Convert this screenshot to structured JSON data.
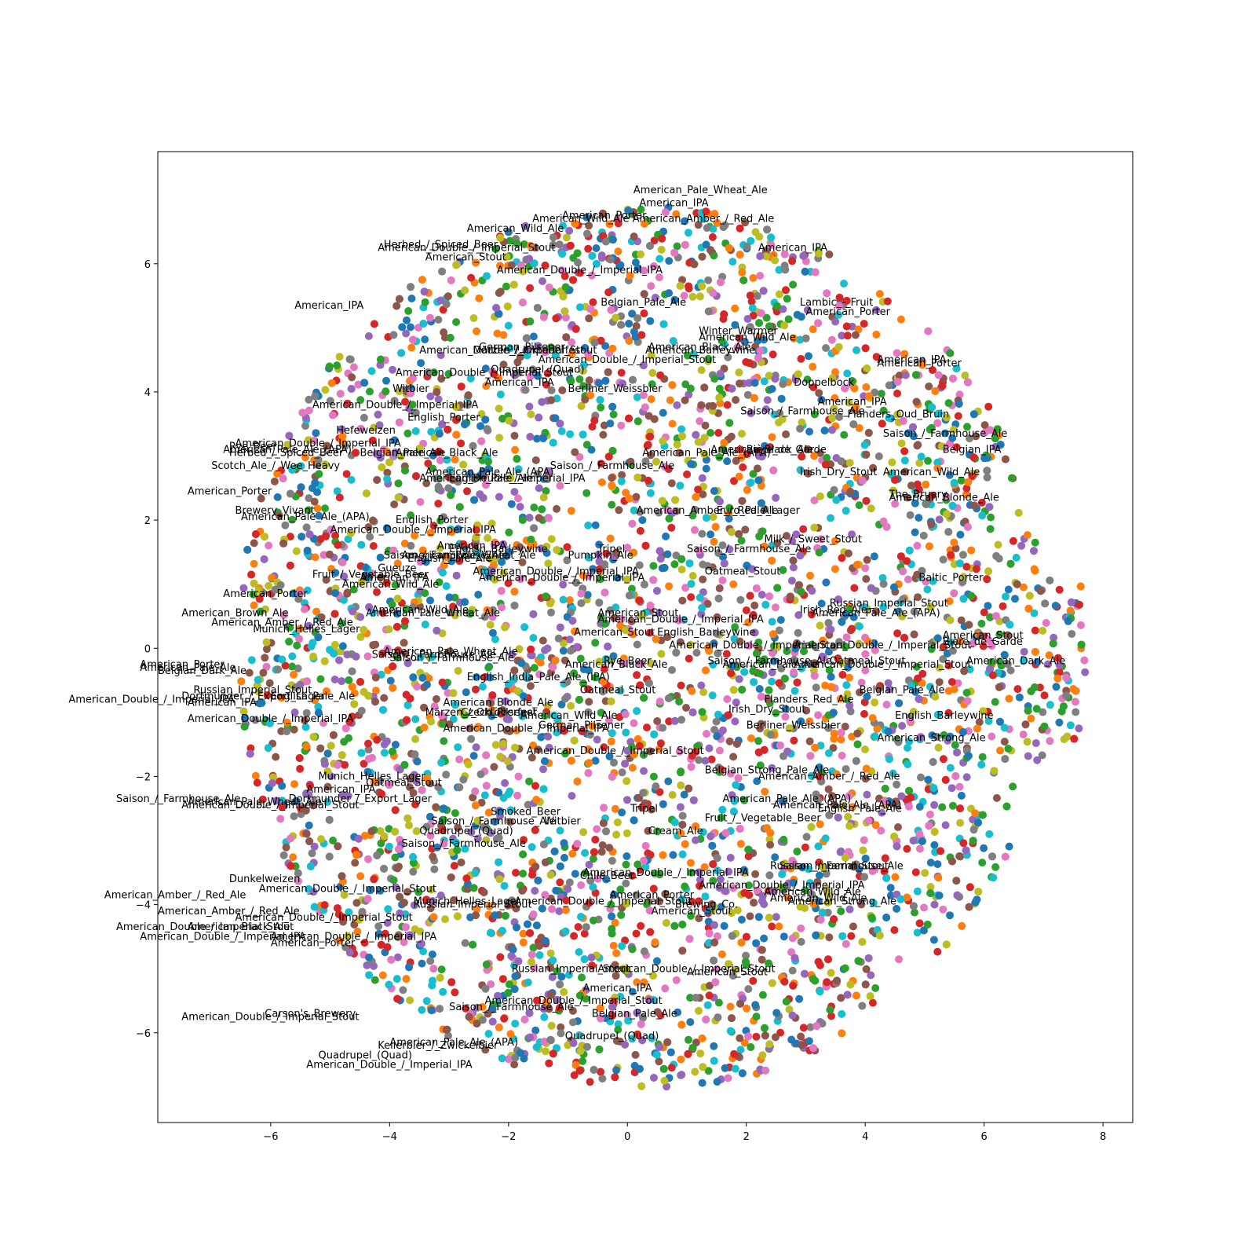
{
  "chart_data": {
    "type": "scatter",
    "title": "",
    "xlabel": "",
    "ylabel": "",
    "xlim": [
      -7.9,
      8.5
    ],
    "ylim": [
      -7.4,
      7.75
    ],
    "xticks": [
      -6,
      -4,
      -2,
      0,
      2,
      4,
      6,
      8
    ],
    "yticks": [
      -6,
      -4,
      -2,
      0,
      2,
      4,
      6
    ],
    "grid": false,
    "legend": "none",
    "marker_colors": [
      "#1f77b4",
      "#ff7f0e",
      "#2ca02c",
      "#d62728",
      "#9467bd",
      "#8c564b",
      "#e377c2",
      "#7f7f7f",
      "#bcbd22",
      "#17becf"
    ],
    "labels": [
      {
        "text": "American_Pale_Wheat_Ale",
        "x": 0.1,
        "y": 7.1
      },
      {
        "text": "American_IPA",
        "x": 0.2,
        "y": 6.9
      },
      {
        "text": "American_Porter",
        "x": -1.1,
        "y": 6.7
      },
      {
        "text": "American_Wild_Ale American_Amber_/_Red_Ale",
        "x": -1.6,
        "y": 6.65
      },
      {
        "text": "American_Wild_Ale",
        "x": -2.7,
        "y": 6.5
      },
      {
        "text": "Herbed_/_Spiced_Beer",
        "x": -4.1,
        "y": 6.25
      },
      {
        "text": "American_Double_/_Imperial_Stout",
        "x": -4.2,
        "y": 6.2
      },
      {
        "text": "American_Stout",
        "x": -3.4,
        "y": 6.05
      },
      {
        "text": "American_Double_/_Imperial_IPA",
        "x": -2.2,
        "y": 5.85
      },
      {
        "text": "American_IPA",
        "x": 2.2,
        "y": 6.2
      },
      {
        "text": "American_IPA",
        "x": -5.6,
        "y": 5.3
      },
      {
        "text": "Belgian_Pale_Ale",
        "x": -0.45,
        "y": 5.35
      },
      {
        "text": "Lambic_-_Fruit",
        "x": 2.9,
        "y": 5.35
      },
      {
        "text": "American_Porter",
        "x": 3.0,
        "y": 5.2
      },
      {
        "text": "Winter_Warmer",
        "x": 1.2,
        "y": 4.9
      },
      {
        "text": "American_Wild_Ale",
        "x": 1.2,
        "y": 4.8
      },
      {
        "text": "American_Black_Ale",
        "x": 0.35,
        "y": 4.65
      },
      {
        "text": "American_Barleywine",
        "x": 0.3,
        "y": 4.6
      },
      {
        "text": "American_Double_/_Imperial_Stout",
        "x": -3.5,
        "y": 4.6
      },
      {
        "text": "German_Pilsener",
        "x": -2.5,
        "y": 4.65
      },
      {
        "text": "Märzen_/_Oktoberfest",
        "x": -2.6,
        "y": 4.6
      },
      {
        "text": "American_Double_/_Imperial_Stout",
        "x": -1.5,
        "y": 4.45
      },
      {
        "text": "Quadrupel_(Quad)",
        "x": -2.3,
        "y": 4.3
      },
      {
        "text": "American_Double_/_Imperial_Stout",
        "x": -3.9,
        "y": 4.25
      },
      {
        "text": "American_IPA",
        "x": -2.4,
        "y": 4.1
      },
      {
        "text": "Witbier",
        "x": -3.95,
        "y": 4.0
      },
      {
        "text": "Berliner_Weissbier",
        "x": -1.0,
        "y": 4.0
      },
      {
        "text": "American_IPA",
        "x": 4.2,
        "y": 4.45
      },
      {
        "text": "American_Porter",
        "x": 4.2,
        "y": 4.4
      },
      {
        "text": "Doppelbock",
        "x": 2.8,
        "y": 4.1
      },
      {
        "text": "American_Double_/_Imperial_IPA",
        "x": -5.3,
        "y": 3.75
      },
      {
        "text": "English_Porter",
        "x": -3.7,
        "y": 3.55
      },
      {
        "text": "Saison_/_Farmhouse_Ale",
        "x": 1.9,
        "y": 3.65
      },
      {
        "text": "American_IPA",
        "x": 3.2,
        "y": 3.8
      },
      {
        "text": "Flanders_Oud_Bruin",
        "x": 3.7,
        "y": 3.6
      },
      {
        "text": "Hefeweizen",
        "x": -4.9,
        "y": 3.35
      },
      {
        "text": "Saison_/_Farmhouse_Ale",
        "x": 4.3,
        "y": 3.3
      },
      {
        "text": "American_Double_/_Imperial_IPA",
        "x": -6.6,
        "y": 3.15
      },
      {
        "text": "Rye_Beer",
        "x": -6.7,
        "y": 3.1
      },
      {
        "text": "American_Pale_Ale_(APA)",
        "x": -6.8,
        "y": 3.05
      },
      {
        "text": "Herbed_/_Spiced_Beer",
        "x": -6.7,
        "y": 3.0
      },
      {
        "text": "Belgian_Pale_Ale",
        "x": -4.5,
        "y": 3.0
      },
      {
        "text": "American_Black_Ale",
        "x": -3.9,
        "y": 3.0
      },
      {
        "text": "American_Pale_Ale_(APA)",
        "x": 0.25,
        "y": 3.0
      },
      {
        "text": "Bière_de_Garde",
        "x": 2.0,
        "y": 3.05
      },
      {
        "text": "American_Black_Ale",
        "x": 1.4,
        "y": 3.05
      },
      {
        "text": "Belgian_IPA",
        "x": 5.3,
        "y": 3.05
      },
      {
        "text": "Scotch_Ale_/_Wee_Heavy",
        "x": -7.0,
        "y": 2.8
      },
      {
        "text": "Saison_/_Farmhouse_Ale",
        "x": -1.3,
        "y": 2.8
      },
      {
        "text": "American_Pale_Ale_(APA)",
        "x": -3.4,
        "y": 2.7
      },
      {
        "text": "American_Double_/_Imperial_IPA",
        "x": -3.5,
        "y": 2.6
      },
      {
        "text": "English_Pale_Ale",
        "x": -3.0,
        "y": 2.6
      },
      {
        "text": "Irish_Dry_Stout",
        "x": 2.9,
        "y": 2.7
      },
      {
        "text": "American_Wild_Ale",
        "x": 4.3,
        "y": 2.7
      },
      {
        "text": "American_Porter",
        "x": -7.4,
        "y": 2.4
      },
      {
        "text": "The_Bruery",
        "x": 4.4,
        "y": 2.35
      },
      {
        "text": "American_Blonde_Ale",
        "x": 4.4,
        "y": 2.3
      },
      {
        "text": "Brewery_Vivant",
        "x": -6.6,
        "y": 2.1
      },
      {
        "text": "American_Pale_Ale_(APA)",
        "x": -6.5,
        "y": 2.0
      },
      {
        "text": "English_Porter",
        "x": -3.9,
        "y": 1.95
      },
      {
        "text": "American_Double_/_Imperial_IPA",
        "x": -5.0,
        "y": 1.8
      },
      {
        "text": "American_Amber_/_Red_Ale",
        "x": 0.15,
        "y": 2.1
      },
      {
        "text": "Euro_Pale_Lager",
        "x": 1.5,
        "y": 2.1
      },
      {
        "text": "American_IPA",
        "x": -3.2,
        "y": 1.55
      },
      {
        "text": "English_Barleywine",
        "x": -3.0,
        "y": 1.5
      },
      {
        "text": "Saison_/_Farmhouse_Ale",
        "x": -4.1,
        "y": 1.4
      },
      {
        "text": "American_Pale_Wheat_Ale",
        "x": -3.8,
        "y": 1.4
      },
      {
        "text": "English_Pale_Ale",
        "x": -3.7,
        "y": 1.35
      },
      {
        "text": "Tripel",
        "x": -0.5,
        "y": 1.5
      },
      {
        "text": "Pumpkin_Ale",
        "x": -1.0,
        "y": 1.4
      },
      {
        "text": "Saison_/_Farmhouse_Ale",
        "x": 1.0,
        "y": 1.5
      },
      {
        "text": "Milk_/_Sweet_Stout",
        "x": 2.3,
        "y": 1.65
      },
      {
        "text": "Gueuze",
        "x": -4.2,
        "y": 1.2
      },
      {
        "text": "Fruit_/_Vegetable_Beer",
        "x": -5.3,
        "y": 1.1
      },
      {
        "text": "American_IPA",
        "x": -4.5,
        "y": 1.05
      },
      {
        "text": "American_Wild_Ale",
        "x": -4.8,
        "y": 0.95
      },
      {
        "text": "American_Double_/_Imperial_IPA",
        "x": -2.6,
        "y": 1.15
      },
      {
        "text": "American_Double_/_Imperial_IPA",
        "x": -2.5,
        "y": 1.05
      },
      {
        "text": "Oatmeal_Stout",
        "x": 1.3,
        "y": 1.15
      },
      {
        "text": "Baltic_Porter",
        "x": 4.9,
        "y": 1.05
      },
      {
        "text": "American_Porter",
        "x": -6.8,
        "y": 0.8
      },
      {
        "text": "Russian_Imperial_Stout",
        "x": 3.4,
        "y": 0.65
      },
      {
        "text": "American_Wild_Ale",
        "x": -4.3,
        "y": 0.55
      },
      {
        "text": "American_Pale_Wheat_Ale",
        "x": -4.4,
        "y": 0.5
      },
      {
        "text": "Irish_Red_Ale",
        "x": 2.9,
        "y": 0.55
      },
      {
        "text": "American_Pale_Ale_(APA)",
        "x": 3.1,
        "y": 0.5
      },
      {
        "text": "American_Stout",
        "x": -0.5,
        "y": 0.5
      },
      {
        "text": "American_Double_/_Imperial_IPA",
        "x": -0.5,
        "y": 0.4
      },
      {
        "text": "American_Brown_Ale",
        "x": -7.5,
        "y": 0.5
      },
      {
        "text": "American_Amber_/_Red_Ale",
        "x": -7.0,
        "y": 0.35
      },
      {
        "text": "Munich_Helles_Lager",
        "x": -6.3,
        "y": 0.25
      },
      {
        "text": "English_Barleywine",
        "x": 0.5,
        "y": 0.2
      },
      {
        "text": "American_Stout",
        "x": -0.9,
        "y": 0.2
      },
      {
        "text": "American_Stout",
        "x": 5.3,
        "y": 0.15
      },
      {
        "text": "Bière_de_Garde",
        "x": 5.3,
        "y": 0.05
      },
      {
        "text": "American_Double_/_Imperial_Stout",
        "x": 0.7,
        "y": 0.0
      },
      {
        "text": "American_Double_/_Imperial_Stout",
        "x": 2.8,
        "y": 0.0
      },
      {
        "text": "Saison_/_Farmhouse_Ale",
        "x": -4.3,
        "y": -0.15
      },
      {
        "text": "Saison_/_Farmhouse_Ale",
        "x": -4.0,
        "y": -0.2
      },
      {
        "text": "American_Pale_Wheat_Ale",
        "x": -4.1,
        "y": -0.1
      },
      {
        "text": "Saison_/_Farmhouse_Ale",
        "x": 1.35,
        "y": -0.25
      },
      {
        "text": "American_Pale_Ale",
        "x": 1.6,
        "y": -0.3
      },
      {
        "text": "American_Double_/_Imperial_Stout",
        "x": 2.8,
        "y": -0.3
      },
      {
        "text": "Oatmeal_Stout",
        "x": 3.4,
        "y": -0.25
      },
      {
        "text": "American_Dark_Ale",
        "x": 5.7,
        "y": -0.25
      },
      {
        "text": "Rye_Beer",
        "x": -0.4,
        "y": -0.25
      },
      {
        "text": "American_Black_Ale",
        "x": -1.05,
        "y": -0.3
      },
      {
        "text": "American_Porter",
        "x": -8.2,
        "y": -0.3
      },
      {
        "text": "American_Pale_Ale",
        "x": -8.2,
        "y": -0.35
      },
      {
        "text": "Belgian_Dark_Ale",
        "x": -7.9,
        "y": -0.4
      },
      {
        "text": "English_India_Pale_Ale_(IPA)",
        "x": -2.7,
        "y": -0.5
      },
      {
        "text": "Russian_Imperial_Stout",
        "x": -7.3,
        "y": -0.7
      },
      {
        "text": "Oatmeal_Stout",
        "x": -0.8,
        "y": -0.7
      },
      {
        "text": "Belgian_Pale_Ale",
        "x": 3.9,
        "y": -0.7
      },
      {
        "text": "Dortmunder_/_Export_Lager",
        "x": -7.5,
        "y": -0.8
      },
      {
        "text": "English_Pale_Ale",
        "x": -6.0,
        "y": -0.8
      },
      {
        "text": "American_Double_/_Imperial_IPA",
        "x": -9.4,
        "y": -0.85
      },
      {
        "text": "American_IPA",
        "x": -7.4,
        "y": -0.9
      },
      {
        "text": "Flanders_Red_Ale",
        "x": 2.3,
        "y": -0.85
      },
      {
        "text": "American_Blonde_Ale",
        "x": -3.1,
        "y": -0.9
      },
      {
        "text": "Märzen_/_Oktoberfest",
        "x": -3.4,
        "y": -1.05
      },
      {
        "text": "Czech_Pilsener",
        "x": -2.8,
        "y": -1.05
      },
      {
        "text": "American_Wild_Ale",
        "x": -1.8,
        "y": -1.1
      },
      {
        "text": "Irish_Dry_Stout",
        "x": 1.7,
        "y": -1.0
      },
      {
        "text": "English_Barleywine",
        "x": 4.5,
        "y": -1.1
      },
      {
        "text": "American_Double_/_Imperial_IPA",
        "x": -7.4,
        "y": -1.15
      },
      {
        "text": "American_Double_/_Imperial_IPA",
        "x": -3.1,
        "y": -1.3
      },
      {
        "text": "German_Pilsener",
        "x": -1.5,
        "y": -1.25
      },
      {
        "text": "Berliner_Weissbier",
        "x": 2.0,
        "y": -1.25
      },
      {
        "text": "American_Strong_Ale",
        "x": 4.2,
        "y": -1.45
      },
      {
        "text": "American_Double_/_Imperial_Stout",
        "x": -1.7,
        "y": -1.65
      },
      {
        "text": "Belgian_Strong_Pale_Ale",
        "x": 1.3,
        "y": -1.95
      },
      {
        "text": "American_Amber_/_Red_Ale",
        "x": 2.2,
        "y": -2.05
      },
      {
        "text": "Munich_Helles_Lager",
        "x": -5.2,
        "y": -2.05
      },
      {
        "text": "Oatmeal_Stout",
        "x": -4.4,
        "y": -2.15
      },
      {
        "text": "American_IPA",
        "x": -5.4,
        "y": -2.25
      },
      {
        "text": "Saison_/_Farmhouse_Ale",
        "x": -8.6,
        "y": -2.4
      },
      {
        "text": "American_Pale_Wheat_Ale",
        "x": -7.4,
        "y": -2.45
      },
      {
        "text": "Dortmunder_/_Export_Lager",
        "x": -5.7,
        "y": -2.4
      },
      {
        "text": "American_Double_/_Imperial_Stout",
        "x": -7.5,
        "y": -2.5
      },
      {
        "text": "American_Pale_Ale_(APA)",
        "x": 1.6,
        "y": -2.4
      },
      {
        "text": "American_Pale_Ale_(APA)",
        "x": 2.45,
        "y": -2.5
      },
      {
        "text": "English_Pale_Ale",
        "x": 3.2,
        "y": -2.55
      },
      {
        "text": "Tripel",
        "x": 0.05,
        "y": -2.55
      },
      {
        "text": "Smoked_Beer",
        "x": -2.3,
        "y": -2.6
      },
      {
        "text": "Fruit_/_Vegetable_Beer",
        "x": 1.3,
        "y": -2.7
      },
      {
        "text": "Saison_/_Farmhouse_Ale",
        "x": -3.3,
        "y": -2.75
      },
      {
        "text": "Witbier",
        "x": -1.4,
        "y": -2.75
      },
      {
        "text": "Quadrupel_(Quad)",
        "x": -3.5,
        "y": -2.9
      },
      {
        "text": "Cream_Ale",
        "x": 0.35,
        "y": -2.9
      },
      {
        "text": "Saison_/_Farmhouse_Ale",
        "x": -3.8,
        "y": -3.1
      },
      {
        "text": "American_Double_/_Imperial_IPA",
        "x": -0.75,
        "y": -3.55
      },
      {
        "text": "Chile_Beer",
        "x": -0.8,
        "y": -3.6
      },
      {
        "text": "Russian_Imperial_Stout",
        "x": 2.4,
        "y": -3.45
      },
      {
        "text": "Saison_/_Farmhouse_Ale",
        "x": 2.55,
        "y": -3.45
      },
      {
        "text": "Dunkelweizen",
        "x": -6.7,
        "y": -3.65
      },
      {
        "text": "American_Double_/_Imperial_Stout",
        "x": -6.2,
        "y": -3.8
      },
      {
        "text": "American_Double_/_Imperial_IPA",
        "x": 1.2,
        "y": -3.75
      },
      {
        "text": "American_Wild_Ale",
        "x": 2.3,
        "y": -3.85
      },
      {
        "text": "American_Amber_/_Red_Ale",
        "x": -8.8,
        "y": -3.9
      },
      {
        "text": "American_Porter",
        "x": -0.3,
        "y": -3.9
      },
      {
        "text": "American_Wild_Ale",
        "x": 2.4,
        "y": -3.95
      },
      {
        "text": "American_Strong_Ale",
        "x": 2.7,
        "y": -4.0
      },
      {
        "text": "Munich_Helles_Lager",
        "x": -3.6,
        "y": -4.0
      },
      {
        "text": "Russian_Imperial_Stout",
        "x": -3.6,
        "y": -4.05
      },
      {
        "text": "American_Double_/_Imperial_Stout",
        "x": -1.9,
        "y": -4.0
      },
      {
        "text": "Brewing_Co.",
        "x": 0.8,
        "y": -4.05
      },
      {
        "text": "American_Stout",
        "x": 0.4,
        "y": -4.15
      },
      {
        "text": "American_Amber_/_Red_Ale",
        "x": -7.9,
        "y": -4.15
      },
      {
        "text": "American_Double_/_Imperial_Stout",
        "x": -6.6,
        "y": -4.25
      },
      {
        "text": "American_Double_/_Imperial_Stout",
        "x": -8.6,
        "y": -4.4
      },
      {
        "text": "American_Black_Ale",
        "x": -7.4,
        "y": -4.4
      },
      {
        "text": "American_Double_/_Imperial_IPA",
        "x": -8.2,
        "y": -4.55
      },
      {
        "text": "American_Double_/_Imperial_IPA",
        "x": -6.0,
        "y": -4.55
      },
      {
        "text": "American_Porter",
        "x": -6.0,
        "y": -4.65
      },
      {
        "text": "Russian_Imperial_Stout",
        "x": -1.95,
        "y": -5.05
      },
      {
        "text": "American_Double_/_Imperial_Stout",
        "x": -0.5,
        "y": -5.05
      },
      {
        "text": "American_Stout",
        "x": 1.0,
        "y": -5.1
      },
      {
        "text": "American_IPA",
        "x": -0.75,
        "y": -5.35
      },
      {
        "text": "American_Double_/_Imperial_Stout",
        "x": -2.4,
        "y": -5.55
      },
      {
        "text": "Saison_/_Farmhouse_Ale",
        "x": -3.0,
        "y": -5.65
      },
      {
        "text": "Belgian_Pale_Ale",
        "x": -0.6,
        "y": -5.75
      },
      {
        "text": "Carson's_Brewery",
        "x": -6.1,
        "y": -5.75
      },
      {
        "text": "American_Double_/_Imperial_Stout",
        "x": -7.5,
        "y": -5.8
      },
      {
        "text": "Quadrupel_(Quad)",
        "x": -1.05,
        "y": -6.1
      },
      {
        "text": "Kellerbier_/_Zwickelbier",
        "x": -4.2,
        "y": -6.25
      },
      {
        "text": "American_Pale_Ale_(APA)",
        "x": -4.0,
        "y": -6.2
      },
      {
        "text": "Quadrupel_(Quad)",
        "x": -5.2,
        "y": -6.4
      },
      {
        "text": "American_Double_/_Imperial_IPA",
        "x": -5.4,
        "y": -6.55
      }
    ]
  }
}
